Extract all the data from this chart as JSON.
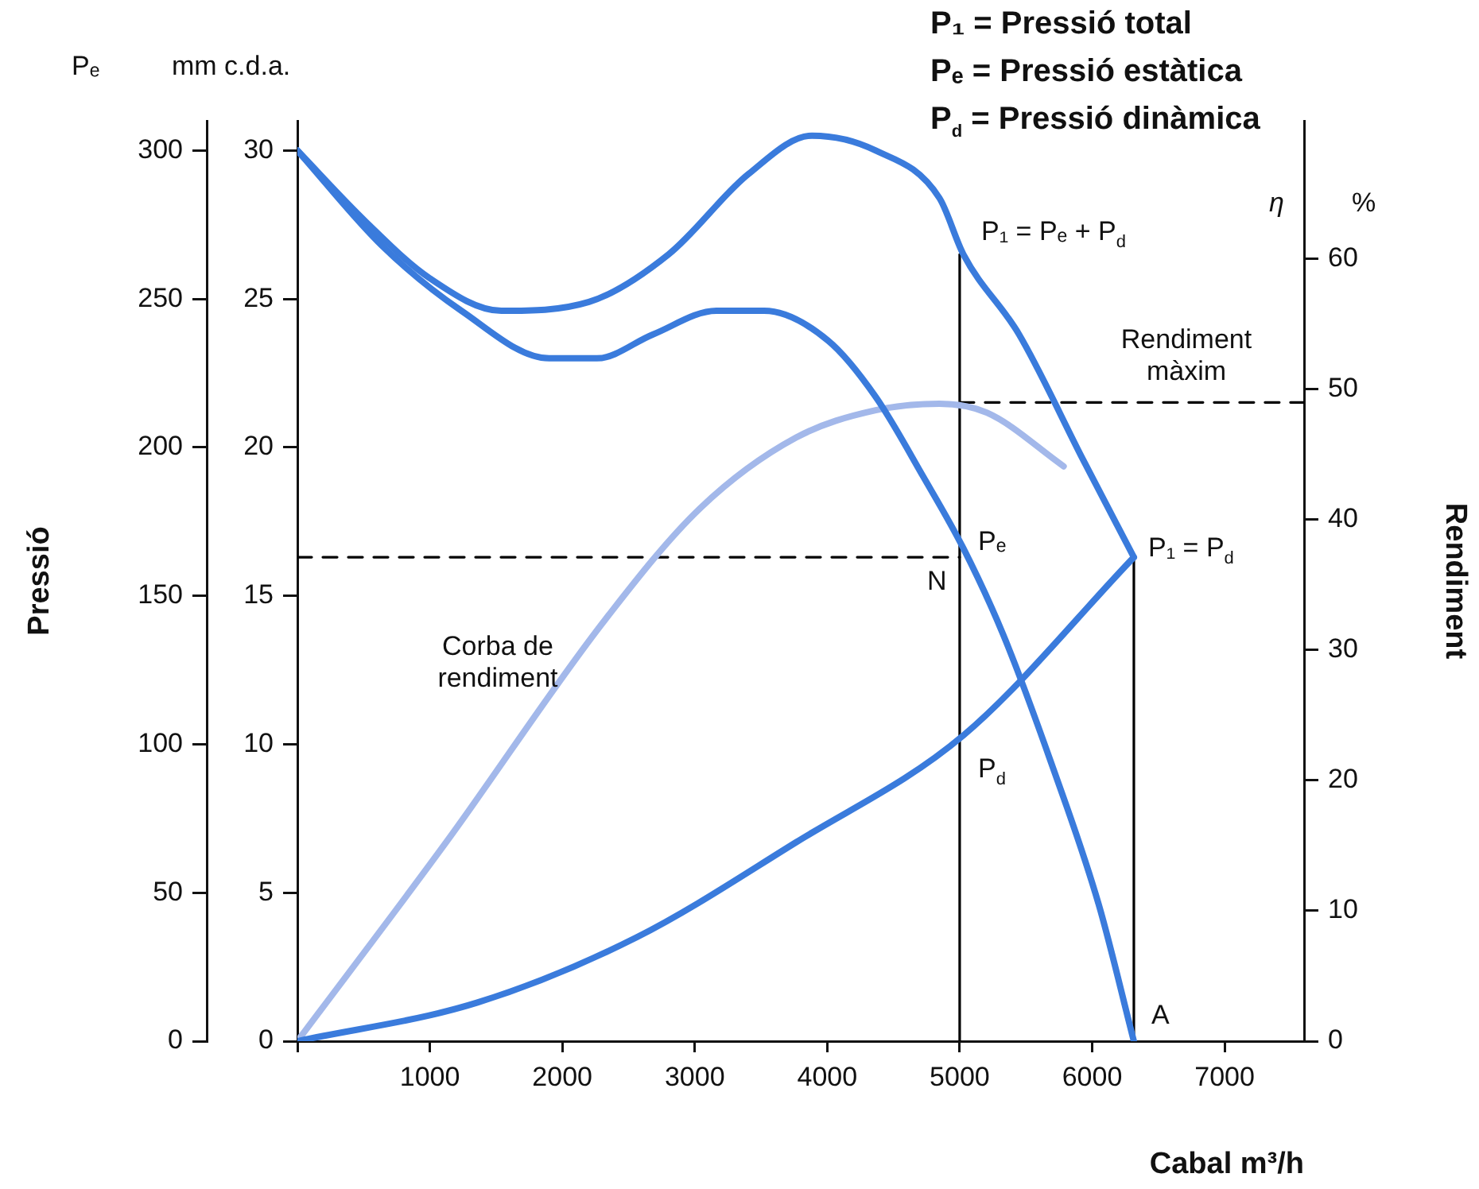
{
  "chart_data": {
    "type": "line",
    "xlabel": "Cabal m³/h",
    "ylabel": "Pressió",
    "y2label": "mm c.d.a.",
    "y3label": "Rendiment",
    "xlim": [
      0,
      7600
    ],
    "xticks": [
      {
        "value": 0,
        "label": null
      },
      1000,
      2000,
      3000,
      4000,
      5000,
      6000,
      7000
    ],
    "ylim": [
      0,
      310
    ],
    "yticks": [
      0,
      50,
      100,
      150,
      200,
      250,
      300
    ],
    "y2lim": [
      0,
      31
    ],
    "y2ticks": [
      0,
      5,
      10,
      15,
      20,
      25,
      30
    ],
    "y3lim": [
      0,
      70.6
    ],
    "y3ticks": [
      0,
      10,
      20,
      30,
      40,
      50,
      60
    ],
    "grid": false,
    "legend": false,
    "marker": "none",
    "series": [
      {
        "color": "#3a7bdc",
        "x": [
          0,
          517,
          998,
          1540,
          2201,
          2802,
          3404,
          3885,
          4366,
          4847,
          5028,
          5449,
          5930,
          6315
        ],
        "values": [
          300,
          276,
          257,
          246,
          249,
          265,
          292,
          305,
          300,
          284,
          265,
          238,
          196,
          163
        ]
      },
      {
        "color": "#3a7bdc",
        "x": [
          0,
          637,
          1239,
          1900,
          2261,
          2682,
          3163,
          3524,
          4005,
          4366,
          4727,
          5028,
          5328,
          5689,
          6050,
          6315
        ],
        "values": [
          300,
          268,
          246,
          230,
          230,
          238,
          246,
          246,
          236,
          217,
          190,
          166,
          137,
          94,
          46,
          0
        ]
      },
      {
        "color": "#3a7bdc",
        "x": [
          0,
          1359,
          2562,
          3765,
          5028,
          6315
        ],
        "values": [
          0,
          13,
          35,
          67,
          103,
          163
        ]
      },
      {
        "color": "#a3b8ea",
        "axis": "y3",
        "x": [
          0,
          1119,
          2321,
          3043,
          3765,
          4366,
          4847,
          5208,
          5785
        ],
        "values": [
          0,
          15.2,
          32.3,
          40.9,
          46.3,
          48.4,
          48.9,
          48.2,
          44.1
        ]
      },
      {
        "color": "#000000",
        "x": [
          5000,
          5000
        ],
        "values": [
          0,
          265
        ]
      },
      {
        "color": "#000000",
        "x": [
          6315,
          6315
        ],
        "values": [
          0,
          163
        ]
      },
      {
        "color": "#000000",
        "line_style": "dashed",
        "x": [
          0,
          5000
        ],
        "values": [
          163,
          163
        ]
      },
      {
        "color": "#000000",
        "line_style": "dashed",
        "axis": "y3",
        "x": [
          5000,
          7600
        ],
        "values": [
          49,
          49
        ]
      }
    ],
    "annotations": [
      "P₁ = Pressió total",
      "Pₑ = Pressió estàtica",
      "P$_{d}$ = Pressió dinàmica",
      "Rendiment màxim",
      "Corba de rendiment",
      "Pₑ",
      "η",
      "%",
      "P₁ = Pₑ + P$_{d}$",
      "Pₑ",
      "N",
      "P$_{d}$",
      "P₁ = P$_{d}$",
      "A"
    ]
  }
}
